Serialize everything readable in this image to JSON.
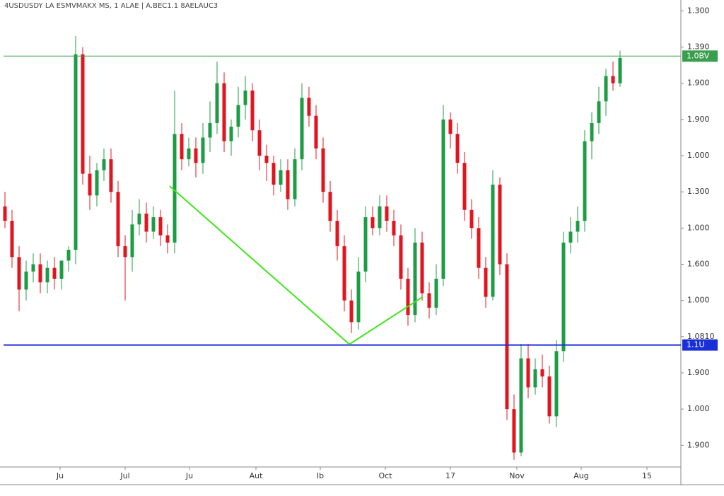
{
  "chart_data": {
    "type": "candlestick",
    "title": "4USDUSDY LA ESMVMAKX MS, 1 ALAE | A.BEC1.1 8AELAUC3",
    "up_color": "#1e9c45",
    "down_color": "#e3141e",
    "xlim": [
      -0.2,
      95.6
    ],
    "ylim": [
      0.4,
      13.3
    ],
    "xticks": [
      {
        "value": 7.8,
        "label": "Ju"
      },
      {
        "value": 17,
        "label": "Jul"
      },
      {
        "value": 26.1,
        "label": "Ju"
      },
      {
        "value": 35.5,
        "label": "Aut"
      },
      {
        "value": 44.6,
        "label": "Ib"
      },
      {
        "value": 53.8,
        "label": "Oct"
      },
      {
        "value": 63,
        "label": "17"
      },
      {
        "value": 72.4,
        "label": "Nov"
      },
      {
        "value": 81.5,
        "label": "Aug"
      },
      {
        "value": 90.8,
        "label": "15"
      }
    ],
    "yticks": [
      {
        "value": 1,
        "label": "1.900"
      },
      {
        "value": 2,
        "label": "1.000"
      },
      {
        "value": 3,
        "label": "1.900"
      },
      {
        "value": 4,
        "label": "1.0810"
      },
      {
        "value": 5,
        "label": "1.000"
      },
      {
        "value": 6,
        "label": "1.600"
      },
      {
        "value": 7,
        "label": "1.000"
      },
      {
        "value": 8,
        "label": "1.300"
      },
      {
        "value": 9,
        "label": "1.000"
      },
      {
        "value": 10,
        "label": "1.900"
      },
      {
        "value": 11,
        "label": "1.900"
      },
      {
        "value": 12,
        "label": "1.390"
      },
      {
        "value": 13,
        "label": "1.300"
      }
    ],
    "open": [
      7.6,
      7.2,
      6.2,
      5.3,
      5.8,
      6.0,
      5.5,
      5.9,
      5.6,
      6.1,
      6.4,
      11.8,
      8.5,
      7.9,
      8.6,
      8.9,
      8.0,
      6.5,
      6.2,
      7.1,
      7.4,
      6.9,
      7.3,
      6.8,
      6.6,
      9.6,
      8.9,
      9.2,
      8.8,
      9.5,
      9.9,
      11.0,
      9.4,
      9.8,
      10.4,
      10.8,
      9.7,
      9.0,
      8.8,
      8.2,
      8.6,
      7.8,
      8.9,
      10.6,
      10.1,
      9.2,
      8.0,
      7.2,
      6.5,
      5.0,
      4.4,
      5.8,
      7.3,
      7.0,
      7.6,
      7.2,
      6.8,
      5.6,
      4.6,
      6.6,
      5.2,
      4.8,
      5.6,
      10.0,
      9.6,
      8.8,
      7.5,
      7.0,
      5.9,
      5.1,
      8.2,
      6.0,
      2.0,
      0.8,
      3.4,
      2.6,
      3.1,
      2.9,
      1.8,
      3.6,
      6.6,
      6.9,
      7.2,
      9.4,
      9.9,
      10.5,
      11.2,
      11.0
    ],
    "high": [
      8.0,
      7.5,
      6.5,
      6.1,
      6.3,
      6.3,
      6.1,
      6.2,
      6.0,
      6.5,
      12.3,
      12.0,
      9.0,
      8.8,
      9.2,
      9.2,
      8.3,
      6.8,
      7.5,
      7.8,
      7.7,
      7.6,
      7.5,
      7.1,
      10.8,
      9.9,
      9.5,
      9.5,
      9.9,
      10.5,
      11.6,
      11.3,
      10.0,
      10.9,
      11.2,
      11.0,
      10.0,
      9.3,
      9.0,
      8.9,
      8.9,
      9.2,
      11.0,
      10.9,
      10.4,
      9.5,
      8.3,
      7.5,
      6.8,
      5.3,
      6.2,
      7.6,
      7.6,
      7.9,
      7.9,
      7.5,
      7.1,
      5.9,
      7.0,
      6.9,
      5.5,
      6.0,
      10.4,
      10.2,
      9.9,
      9.1,
      7.8,
      7.3,
      6.2,
      8.6,
      8.4,
      6.3,
      2.4,
      3.8,
      3.8,
      3.4,
      3.5,
      3.2,
      3.9,
      6.9,
      7.3,
      7.6,
      9.7,
      10.2,
      10.9,
      11.4,
      11.6,
      11.9
    ],
    "low": [
      7.0,
      5.9,
      4.7,
      5.0,
      5.5,
      5.2,
      5.2,
      5.3,
      5.3,
      5.8,
      6.0,
      8.2,
      7.5,
      7.6,
      8.3,
      7.7,
      6.2,
      5.0,
      5.8,
      6.8,
      6.6,
      6.7,
      6.5,
      6.3,
      6.3,
      8.6,
      8.7,
      8.4,
      8.5,
      9.1,
      9.6,
      9.1,
      9.0,
      9.5,
      10.0,
      9.4,
      8.6,
      8.3,
      7.9,
      8.0,
      7.5,
      7.6,
      8.6,
      9.8,
      8.9,
      7.7,
      6.9,
      6.1,
      4.7,
      4.1,
      4.2,
      5.5,
      6.8,
      6.8,
      6.9,
      6.5,
      5.3,
      4.3,
      4.4,
      5.0,
      4.5,
      4.6,
      5.4,
      9.2,
      8.5,
      7.2,
      6.7,
      5.6,
      4.8,
      5.0,
      5.7,
      1.7,
      0.6,
      0.7,
      2.3,
      2.4,
      2.6,
      1.6,
      1.5,
      3.3,
      6.3,
      6.6,
      6.9,
      8.9,
      9.6,
      10.1,
      10.8,
      10.9
    ],
    "close": [
      7.2,
      6.2,
      5.3,
      5.8,
      6.0,
      5.5,
      5.9,
      5.6,
      6.1,
      6.4,
      11.8,
      8.5,
      7.9,
      8.6,
      8.9,
      8.0,
      6.5,
      6.2,
      7.1,
      7.4,
      6.9,
      7.3,
      6.8,
      6.6,
      9.6,
      8.9,
      9.2,
      8.8,
      9.5,
      9.9,
      11.0,
      9.4,
      9.8,
      10.4,
      10.8,
      9.7,
      9.0,
      8.8,
      8.2,
      8.6,
      7.8,
      8.9,
      10.6,
      10.1,
      9.2,
      8.0,
      7.2,
      6.5,
      5.0,
      4.4,
      5.8,
      7.3,
      7.0,
      7.6,
      7.2,
      6.8,
      5.6,
      4.6,
      6.6,
      5.2,
      4.8,
      5.6,
      10.0,
      9.6,
      8.8,
      7.5,
      7.0,
      5.9,
      5.1,
      8.2,
      6.0,
      2.0,
      0.8,
      3.4,
      2.6,
      3.1,
      2.9,
      1.8,
      3.6,
      6.6,
      6.9,
      7.2,
      9.4,
      9.9,
      10.5,
      11.2,
      11.0,
      11.7
    ],
    "levels": [
      {
        "value": 11.75,
        "label": "1.0BV",
        "color": "#3a9e4f"
      },
      {
        "value": 3.77,
        "label": "1.1U",
        "color": "#1a2fd6"
      }
    ],
    "trendline": {
      "x": [
        23.3,
        48.7,
        59.1
      ],
      "y": [
        8.16,
        3.79,
        5.1
      ],
      "color": "#3ee61a"
    }
  }
}
